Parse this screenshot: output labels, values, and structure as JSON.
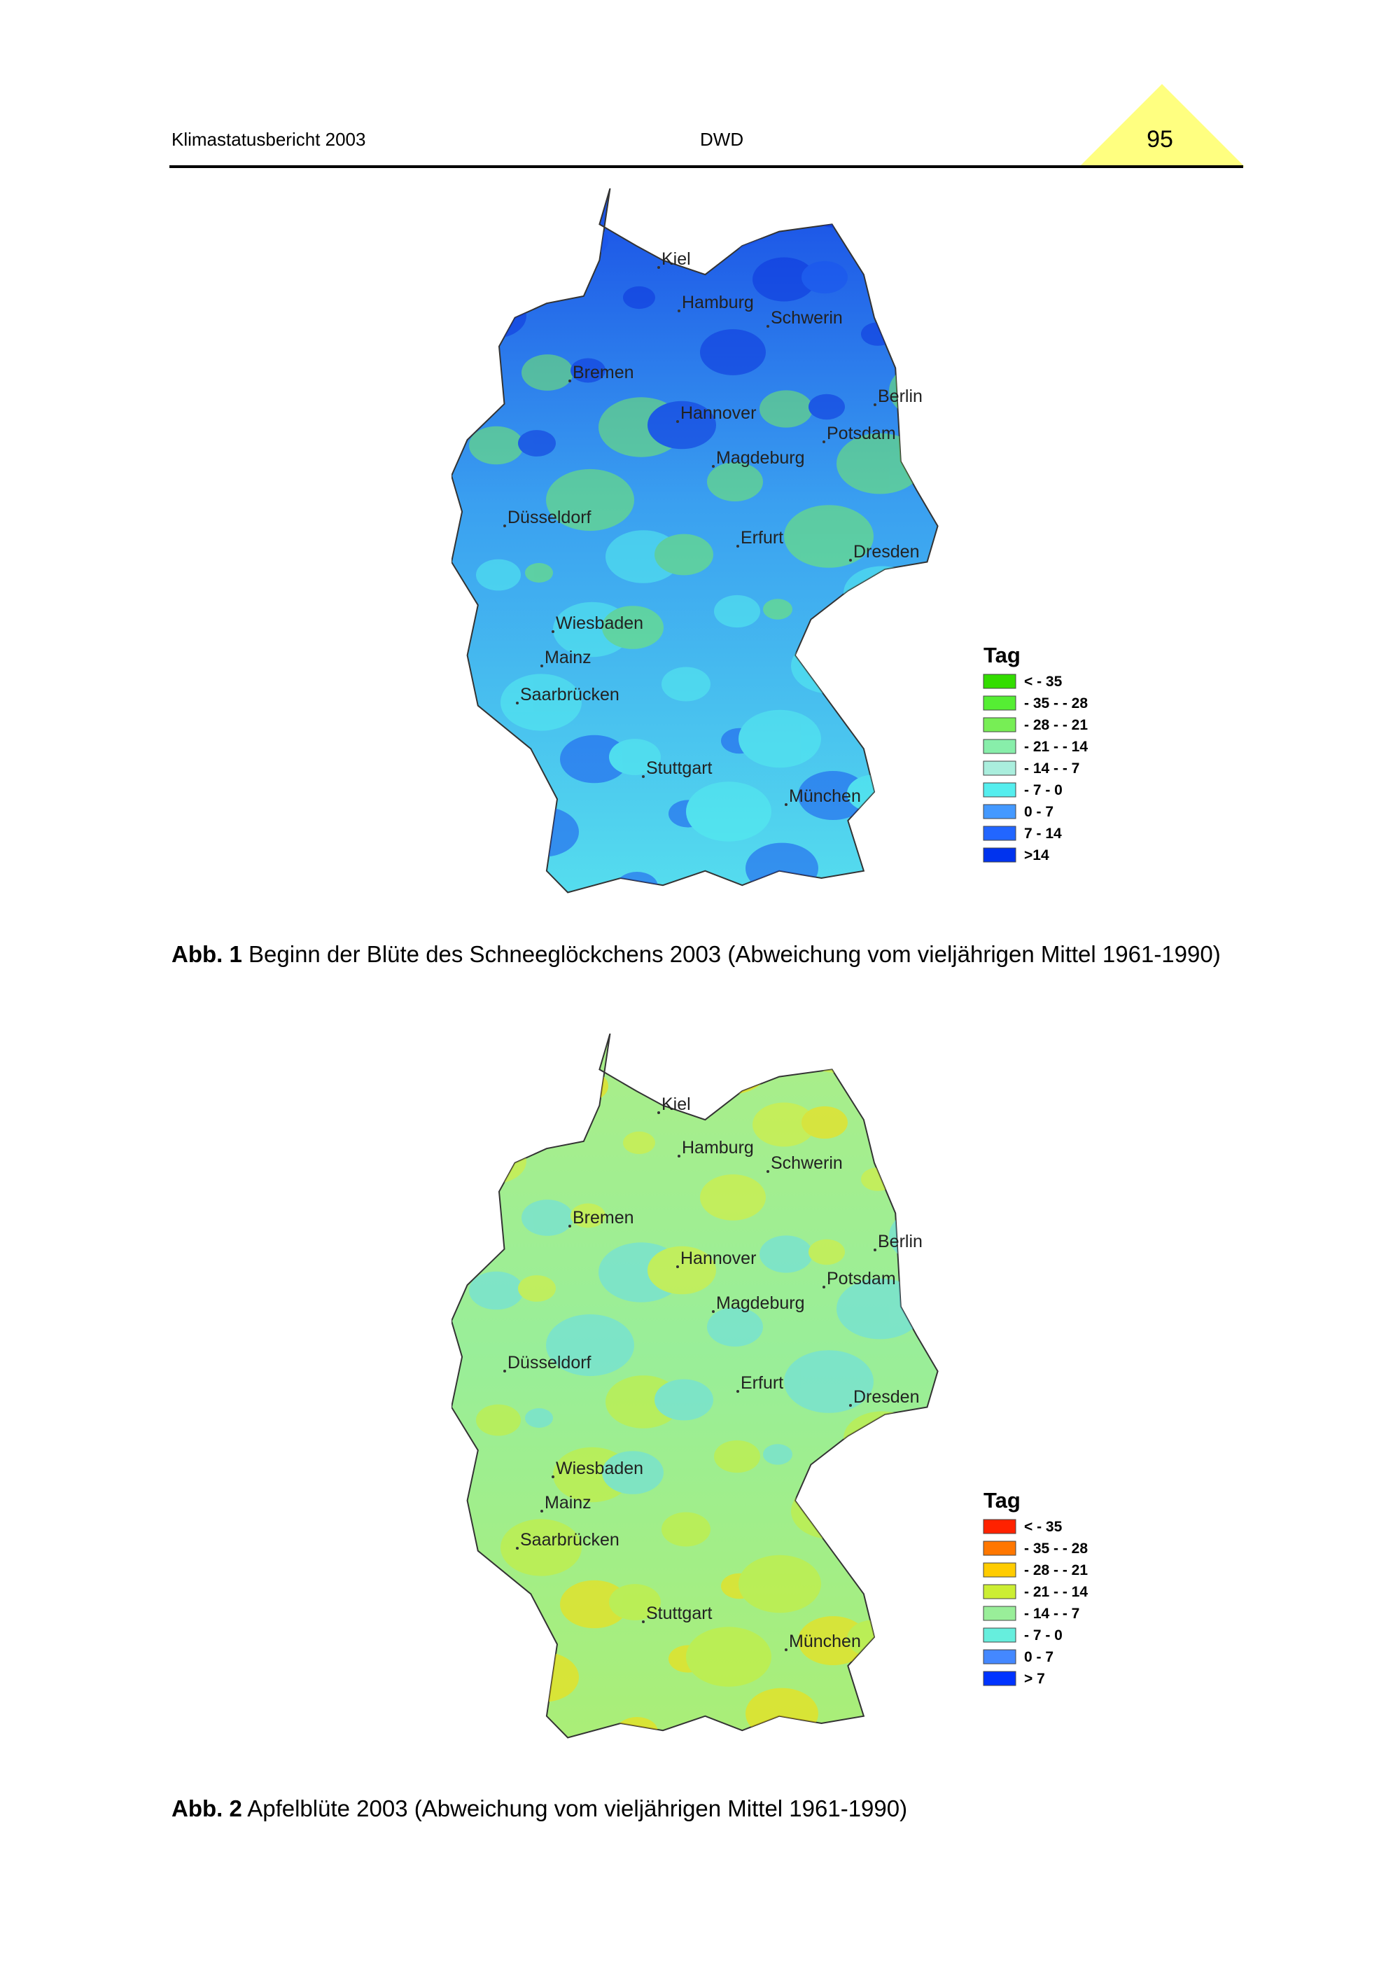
{
  "header": {
    "left": "Klimastatusbericht 2003",
    "center": "DWD",
    "page": "95"
  },
  "figures": [
    {
      "label": "Abb. 1",
      "caption": "Beginn der Blüte des Schneeglöckchens 2003 (Abweichung vom vieljährigen Mittel 1961-1990)",
      "cities": [
        "Kiel",
        "Hamburg",
        "Schwerin",
        "Bremen",
        "Hannover",
        "Berlin",
        "Potsdam",
        "Magdeburg",
        "Düsseldorf",
        "Erfurt",
        "Dresden",
        "Wiesbaden",
        "Mainz",
        "Saarbrücken",
        "Stuttgart",
        "München"
      ],
      "legend": {
        "title": "Tag",
        "items": [
          {
            "label": "< - 35",
            "color": "#33dd00"
          },
          {
            "label": "- 35 - - 28",
            "color": "#55ee33"
          },
          {
            "label": "- 28 - - 21",
            "color": "#77ee55"
          },
          {
            "label": "- 21 - - 14",
            "color": "#88eeaa"
          },
          {
            "label": "- 14 - - 7",
            "color": "#aaeedd"
          },
          {
            "label": "- 7 - 0",
            "color": "#55eeee"
          },
          {
            "label": "0 - 7",
            "color": "#4499ff"
          },
          {
            "label": "7 - 14",
            "color": "#2266ff"
          },
          {
            "label": ">14",
            "color": "#0033ee"
          }
        ]
      }
    },
    {
      "label": "Abb. 2",
      "caption": "Apfelblüte 2003 (Abweichung vom vieljährigen Mittel 1961-1990)",
      "cities": [
        "Kiel",
        "Hamburg",
        "Schwerin",
        "Bremen",
        "Hannover",
        "Berlin",
        "Potsdam",
        "Magdeburg",
        "Düsseldorf",
        "Erfurt",
        "Dresden",
        "Wiesbaden",
        "Mainz",
        "Saarbrücken",
        "Stuttgart",
        "München"
      ],
      "legend": {
        "title": "Tag",
        "items": [
          {
            "label": "< - 35",
            "color": "#ff2200"
          },
          {
            "label": "- 35 - - 28",
            "color": "#ff7700"
          },
          {
            "label": "- 28 - - 21",
            "color": "#ffcc00"
          },
          {
            "label": "- 21 - - 14",
            "color": "#ccee33"
          },
          {
            "label": "- 14 - - 7",
            "color": "#99ee99"
          },
          {
            "label": "- 7 - 0",
            "color": "#66eedd"
          },
          {
            "label": "0 - 7",
            "color": "#4488ff"
          },
          {
            "label": "> 7",
            "color": "#0033ff"
          }
        ]
      }
    }
  ]
}
